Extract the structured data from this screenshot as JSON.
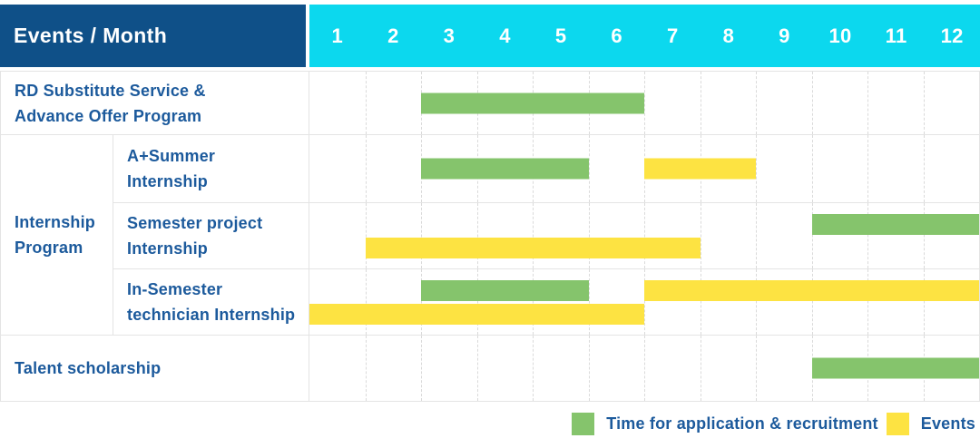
{
  "colors": {
    "navy": "#0f5088",
    "cyan": "#0cd8ee",
    "label_blue": "#1c5a9c",
    "green": "#85c46c",
    "yellow": "#fde342"
  },
  "header": {
    "title": "Events / Month",
    "months": [
      "1",
      "2",
      "3",
      "4",
      "5",
      "6",
      "7",
      "8",
      "9",
      "10",
      "11",
      "12"
    ]
  },
  "chart_data": {
    "type": "gantt",
    "x_unit": "month",
    "x_range": [
      1,
      12
    ],
    "months": [
      "1",
      "2",
      "3",
      "4",
      "5",
      "6",
      "7",
      "8",
      "9",
      "10",
      "11",
      "12"
    ],
    "legend": [
      {
        "key": "green",
        "color": "#85c46c",
        "label": "Time for application & recruitment"
      },
      {
        "key": "yellow",
        "color": "#fde342",
        "label": "Events"
      }
    ],
    "row_groups": [
      {
        "label": "Internship Program",
        "label_lines": [
          "Internship",
          "Program"
        ],
        "row_indexes": [
          1,
          2,
          3
        ]
      }
    ],
    "rows": [
      {
        "label": "RD Substitute Service & Advance Offer Program",
        "label_lines": [
          "RD Substitute Service &",
          "Advance Offer Program"
        ],
        "bars": [
          {
            "type": "green",
            "start_month": 3,
            "end_month": 6,
            "lane": "single"
          }
        ]
      },
      {
        "label": "A+Summer Internship",
        "label_lines": [
          "A+Summer",
          "Internship"
        ],
        "bars": [
          {
            "type": "green",
            "start_month": 3,
            "end_month": 5,
            "lane": "single"
          },
          {
            "type": "yellow",
            "start_month": 7,
            "end_month": 8,
            "lane": "single"
          }
        ]
      },
      {
        "label": "Semester project Internship",
        "label_lines": [
          "Semester project",
          "Internship"
        ],
        "bars": [
          {
            "type": "green",
            "start_month": 10,
            "end_month": 12,
            "lane": "top"
          },
          {
            "type": "yellow",
            "start_month": 2,
            "end_month": 7,
            "lane": "bottom"
          }
        ]
      },
      {
        "label": "In-Semester technician Internship",
        "label_lines": [
          "In-Semester",
          "technician Internship"
        ],
        "bars": [
          {
            "type": "green",
            "start_month": 3,
            "end_month": 5,
            "lane": "top"
          },
          {
            "type": "yellow",
            "start_month": 7,
            "end_month": 12,
            "lane": "top"
          },
          {
            "type": "yellow",
            "start_month": 1,
            "end_month": 6,
            "lane": "bottom"
          }
        ]
      },
      {
        "label": "Talent scholarship",
        "label_lines": [
          "Talent scholarship"
        ],
        "bars": [
          {
            "type": "green",
            "start_month": 10,
            "end_month": 12,
            "lane": "single"
          }
        ]
      }
    ]
  }
}
